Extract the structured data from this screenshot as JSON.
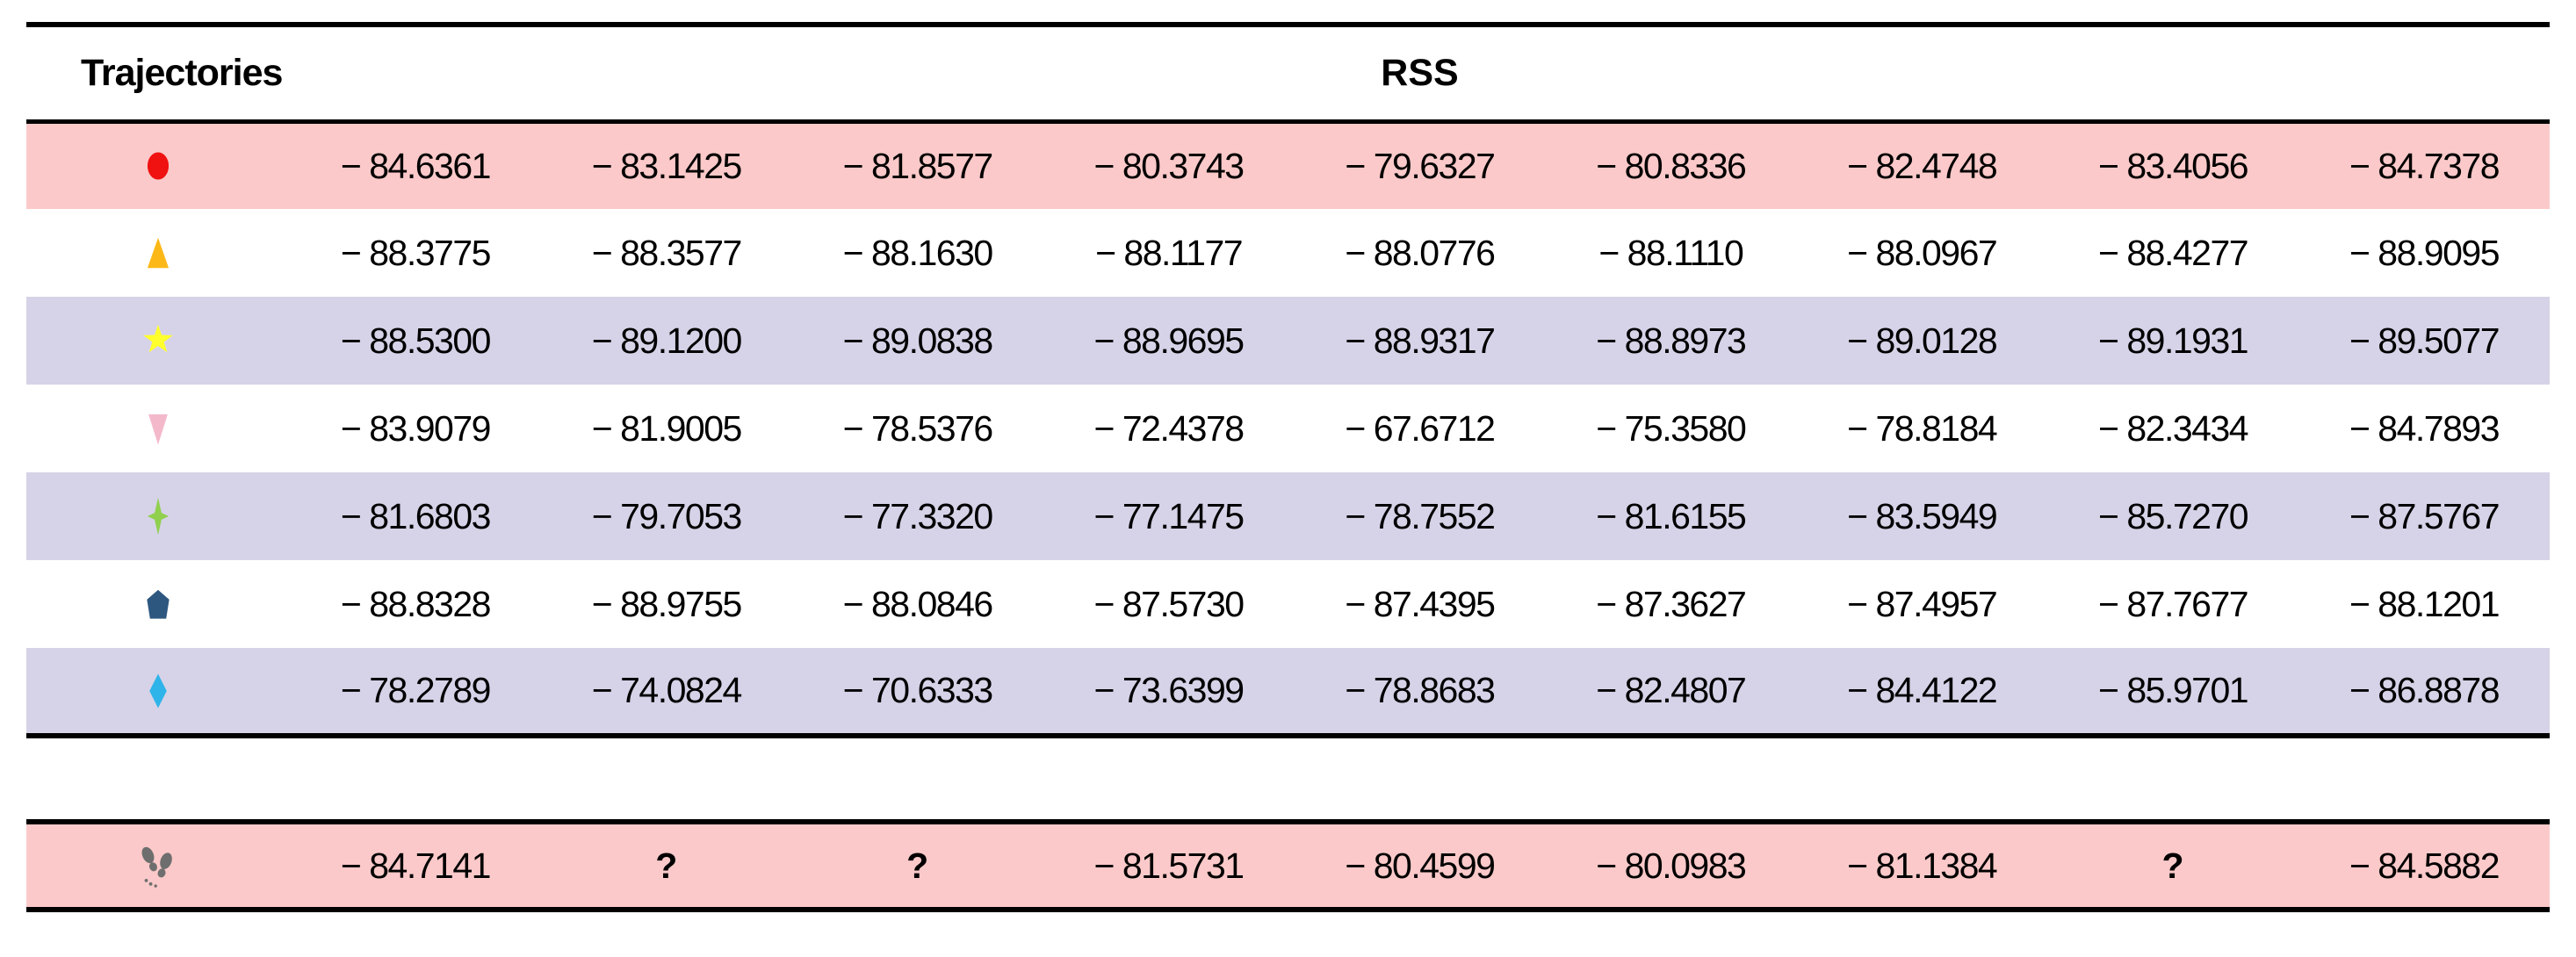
{
  "header": {
    "trajectories_label": "Trajectories",
    "rss_label": "RSS"
  },
  "colors": {
    "row_pink": "#FBC9C9",
    "row_lavender": "#D6D3E8",
    "row_white": "#FFFFFF",
    "border": "#000000",
    "text": "#000000"
  },
  "chart_data": {
    "type": "table",
    "row_header": "Trajectories",
    "value_header": "RSS",
    "num_value_columns": 9,
    "missing_symbol": "?",
    "rows": [
      {
        "marker": "red-circle",
        "marker_color": "#F01111",
        "bg": "pink",
        "values": [
          -84.6361,
          -83.1425,
          -81.8577,
          -80.3743,
          -79.6327,
          -80.8336,
          -82.4748,
          -83.4056,
          -84.7378
        ]
      },
      {
        "marker": "orange-triangle",
        "marker_color": "#FCB817",
        "bg": "white",
        "values": [
          -88.3775,
          -88.3577,
          -88.163,
          -88.1177,
          -88.0776,
          -88.111,
          -88.0967,
          -88.4277,
          -88.9095
        ]
      },
      {
        "marker": "yellow-star",
        "marker_color": "#FFFF2E",
        "bg": "lavender",
        "values": [
          -88.53,
          -89.12,
          -89.0838,
          -88.9695,
          -88.9317,
          -88.8973,
          -89.0128,
          -89.1931,
          -89.5077
        ]
      },
      {
        "marker": "pink-triangle-down",
        "marker_color": "#F3B9CB",
        "bg": "white",
        "values": [
          -83.9079,
          -81.9005,
          -78.5376,
          -72.4378,
          -67.6712,
          -75.358,
          -78.8184,
          -82.3434,
          -84.7893
        ]
      },
      {
        "marker": "green-sparkle",
        "marker_color": "#90D04E",
        "bg": "lavender",
        "values": [
          -81.6803,
          -79.7053,
          -77.332,
          -77.1475,
          -78.7552,
          -81.6155,
          -83.5949,
          -85.727,
          -87.5767
        ]
      },
      {
        "marker": "navy-pentagon",
        "marker_color": "#2D577F",
        "bg": "white",
        "values": [
          -88.8328,
          -88.9755,
          -88.0846,
          -87.573,
          -87.4395,
          -87.3627,
          -87.4957,
          -87.7677,
          -88.1201
        ]
      },
      {
        "marker": "cyan-diamond",
        "marker_color": "#2FB4E9",
        "bg": "lavender",
        "values": [
          -78.2789,
          -74.0824,
          -70.6333,
          -73.6399,
          -78.8683,
          -82.4807,
          -84.4122,
          -85.9701,
          -86.8878
        ]
      }
    ],
    "query_row": {
      "marker": "footprints",
      "marker_color": "#6E6E6E",
      "bg": "pink",
      "values": [
        -84.7141,
        null,
        null,
        -81.5731,
        -80.4599,
        -80.0983,
        -81.1384,
        null,
        -84.5882
      ]
    }
  }
}
